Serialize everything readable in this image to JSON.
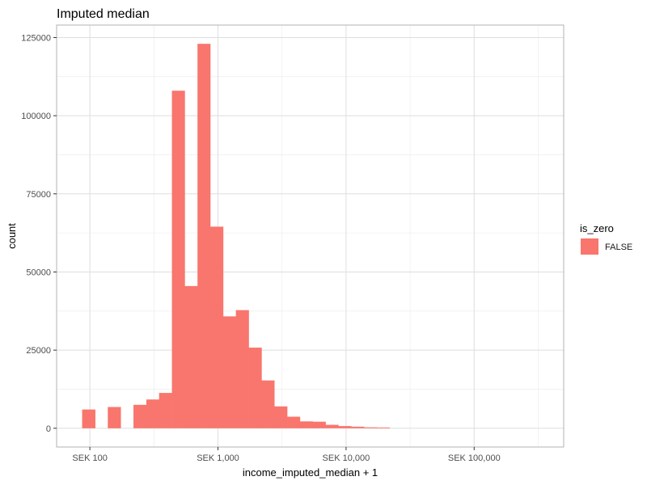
{
  "chart_data": {
    "type": "bar",
    "title": "Imputed median",
    "xlabel": "income_imputed_median + 1",
    "ylabel": "count",
    "x_scale": "log10",
    "xlim": [
      55,
      500000
    ],
    "ylim": [
      -6000,
      129000
    ],
    "x_ticks": [
      {
        "value": 100,
        "label": "SEK 100"
      },
      {
        "value": 1000,
        "label": "SEK 1,000"
      },
      {
        "value": 10000,
        "label": "SEK 10,000"
      },
      {
        "value": 100000,
        "label": "SEK 100,000"
      }
    ],
    "y_ticks": [
      {
        "value": 0,
        "label": "0"
      },
      {
        "value": 25000,
        "label": "25000"
      },
      {
        "value": 50000,
        "label": "50000"
      },
      {
        "value": 75000,
        "label": "75000"
      },
      {
        "value": 100000,
        "label": "100000"
      },
      {
        "value": 125000,
        "label": "125000"
      }
    ],
    "grid": true,
    "legend": {
      "title": "is_zero",
      "position": "right",
      "entries": [
        {
          "label": "FALSE",
          "color": "#F8766D"
        }
      ]
    },
    "series": [
      {
        "name": "FALSE",
        "color": "#F8766D",
        "bins": [
          {
            "x0": 87,
            "x1": 110,
            "count": 6000
          },
          {
            "x0": 138,
            "x1": 174,
            "count": 6800
          },
          {
            "x0": 219,
            "x1": 276,
            "count": 7500
          },
          {
            "x0": 276,
            "x1": 347,
            "count": 9200
          },
          {
            "x0": 347,
            "x1": 437,
            "count": 11300
          },
          {
            "x0": 437,
            "x1": 550,
            "count": 108000
          },
          {
            "x0": 550,
            "x1": 692,
            "count": 45500
          },
          {
            "x0": 692,
            "x1": 871,
            "count": 123000
          },
          {
            "x0": 871,
            "x1": 1097,
            "count": 64500
          },
          {
            "x0": 1097,
            "x1": 1380,
            "count": 35800
          },
          {
            "x0": 1380,
            "x1": 1738,
            "count": 37800
          },
          {
            "x0": 1738,
            "x1": 2188,
            "count": 25800
          },
          {
            "x0": 2188,
            "x1": 2754,
            "count": 15300
          },
          {
            "x0": 2754,
            "x1": 3467,
            "count": 7000
          },
          {
            "x0": 3467,
            "x1": 4365,
            "count": 3700
          },
          {
            "x0": 4365,
            "x1": 5495,
            "count": 2200
          },
          {
            "x0": 5495,
            "x1": 6918,
            "count": 2100
          },
          {
            "x0": 6918,
            "x1": 8710,
            "count": 1100
          },
          {
            "x0": 8710,
            "x1": 10965,
            "count": 700
          },
          {
            "x0": 10965,
            "x1": 13804,
            "count": 500
          },
          {
            "x0": 13804,
            "x1": 17378,
            "count": 300
          },
          {
            "x0": 17378,
            "x1": 21878,
            "count": 250
          }
        ]
      }
    ]
  }
}
